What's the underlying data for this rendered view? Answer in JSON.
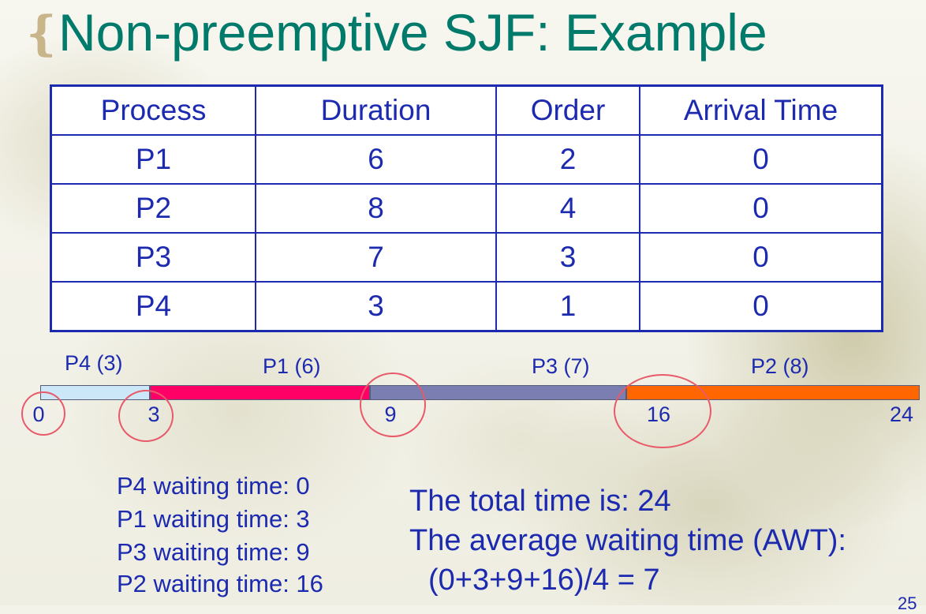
{
  "slide": {
    "title": "Non-preemptive SJF: Example",
    "page_number_partial": "25"
  },
  "table": {
    "headers": [
      "Process",
      "Duration",
      "Order",
      "Arrival Time"
    ],
    "rows": [
      [
        "P1",
        "6",
        "2",
        "0"
      ],
      [
        "P2",
        "8",
        "4",
        "0"
      ],
      [
        "P3",
        "7",
        "3",
        "0"
      ],
      [
        "P4",
        "3",
        "1",
        "0"
      ]
    ]
  },
  "gantt": {
    "segments": [
      {
        "label": "P4 (3)",
        "process": "P4",
        "start": 0,
        "end": 3,
        "color": "#cce8f8"
      },
      {
        "label": "P1 (6)",
        "process": "P1",
        "start": 3,
        "end": 9,
        "color": "#ff0066"
      },
      {
        "label": "P3 (7)",
        "process": "P3",
        "start": 9,
        "end": 16,
        "color": "#7b7eb0"
      },
      {
        "label": "P2 (8)",
        "process": "P2",
        "start": 16,
        "end": 24,
        "color": "#ff6600"
      }
    ],
    "ticks": [
      "0",
      "3",
      "9",
      "16",
      "24"
    ],
    "circled_ticks": [
      "0",
      "3",
      "9",
      "16"
    ],
    "annotation_color": "#e85a6a"
  },
  "waiting": [
    "P4 waiting time: 0",
    "P1 waiting time: 3",
    "P3 waiting time: 9",
    "P2 waiting time: 16"
  ],
  "summary": {
    "total": "The total time is: 24",
    "awt_label": "The average waiting time (AWT):",
    "awt_formula": "(0+3+9+16)/4 = 7"
  },
  "colors": {
    "title": "#007a6a",
    "text": "#1c2ab0",
    "table_border": "#1c2ab0"
  }
}
